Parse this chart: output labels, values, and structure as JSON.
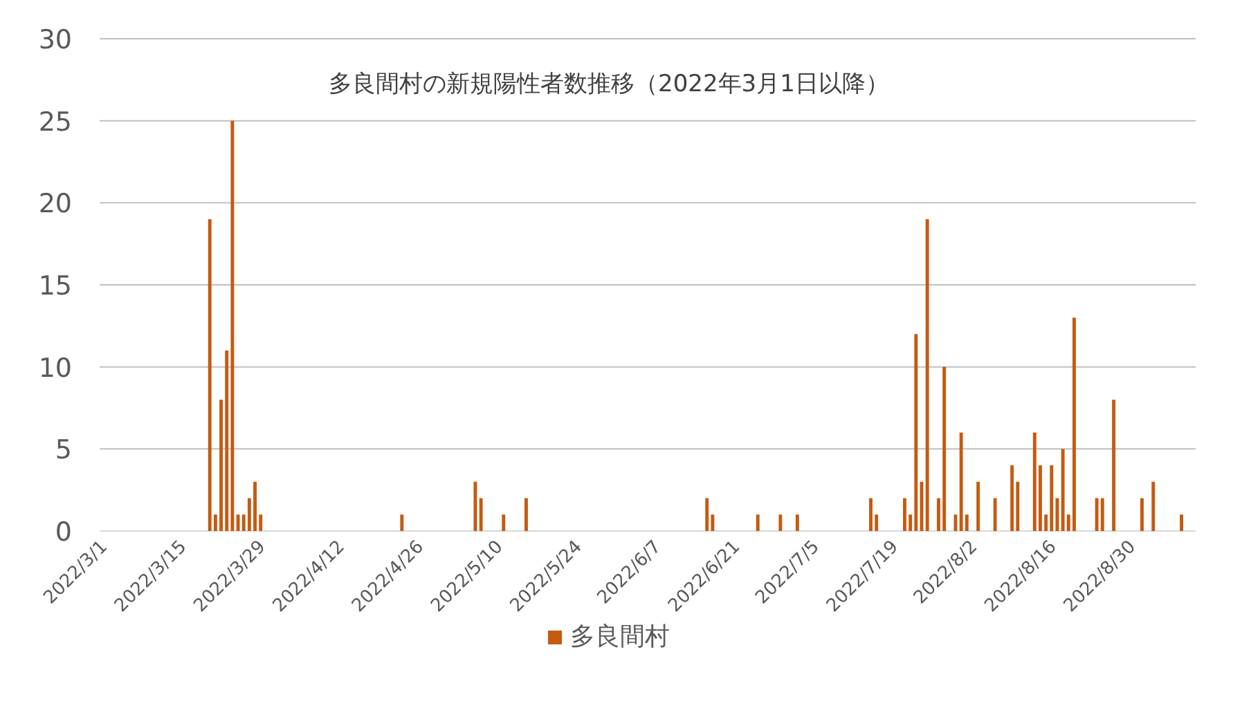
{
  "chart_data": {
    "type": "bar",
    "title": "多良間村の新規陽性者数推移（2022年3月1日以降）",
    "x": [
      "2022-03-20",
      "2022-03-21",
      "2022-03-22",
      "2022-03-23",
      "2022-03-24",
      "2022-03-25",
      "2022-03-26",
      "2022-03-27",
      "2022-03-28",
      "2022-03-29",
      "2022-04-23",
      "2022-05-06",
      "2022-05-07",
      "2022-05-11",
      "2022-05-15",
      "2022-06-16",
      "2022-06-17",
      "2022-06-25",
      "2022-06-29",
      "2022-07-02",
      "2022-07-15",
      "2022-07-16",
      "2022-07-21",
      "2022-07-22",
      "2022-07-23",
      "2022-07-24",
      "2022-07-25",
      "2022-07-27",
      "2022-07-28",
      "2022-07-30",
      "2022-07-31",
      "2022-08-01",
      "2022-08-03",
      "2022-08-06",
      "2022-08-09",
      "2022-08-10",
      "2022-08-13",
      "2022-08-14",
      "2022-08-15",
      "2022-08-16",
      "2022-08-17",
      "2022-08-18",
      "2022-08-19",
      "2022-08-20",
      "2022-08-24",
      "2022-08-25",
      "2022-08-27",
      "2022-09-01",
      "2022-09-03",
      "2022-09-08"
    ],
    "series": [
      {
        "name": "多良間村",
        "color": "#c55a11",
        "values": [
          19,
          1,
          8,
          11,
          25,
          1,
          1,
          2,
          3,
          1,
          1,
          3,
          2,
          1,
          2,
          2,
          1,
          1,
          1,
          1,
          2,
          1,
          2,
          1,
          12,
          3,
          19,
          2,
          10,
          1,
          6,
          1,
          3,
          2,
          4,
          3,
          6,
          4,
          1,
          4,
          2,
          5,
          1,
          13,
          2,
          2,
          8,
          2,
          3,
          1
        ]
      }
    ],
    "xlim": [
      "2022-03-01",
      "2022-09-10"
    ],
    "xticks": [
      {
        "value": "2022-03-01",
        "label": "2022/3/1"
      },
      {
        "value": "2022-03-15",
        "label": "2022/3/15"
      },
      {
        "value": "2022-03-29",
        "label": "2022/3/29"
      },
      {
        "value": "2022-04-12",
        "label": "2022/4/12"
      },
      {
        "value": "2022-04-26",
        "label": "2022/4/26"
      },
      {
        "value": "2022-05-10",
        "label": "2022/5/10"
      },
      {
        "value": "2022-05-24",
        "label": "2022/5/24"
      },
      {
        "value": "2022-06-07",
        "label": "2022/6/7"
      },
      {
        "value": "2022-06-21",
        "label": "2022/6/21"
      },
      {
        "value": "2022-07-05",
        "label": "2022/7/5"
      },
      {
        "value": "2022-07-19",
        "label": "2022/7/19"
      },
      {
        "value": "2022-08-02",
        "label": "2022/8/2"
      },
      {
        "value": "2022-08-16",
        "label": "2022/8/16"
      },
      {
        "value": "2022-08-30",
        "label": "2022/8/30"
      }
    ],
    "ylim": [
      0,
      30
    ],
    "yticks": [
      0,
      5,
      10,
      15,
      20,
      25,
      30
    ],
    "grid": "y",
    "legend": "bottom"
  }
}
